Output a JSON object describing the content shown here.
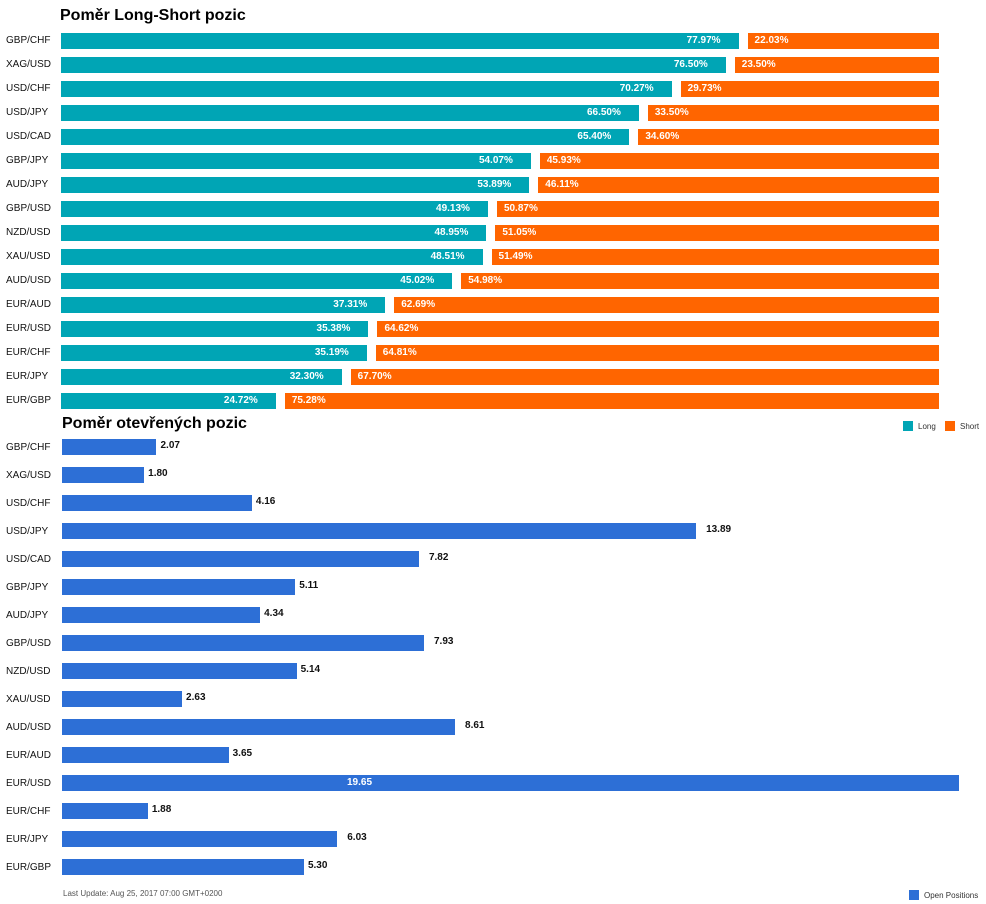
{
  "chart_data": [
    {
      "type": "bar",
      "orientation": "horizontal",
      "stacked": "100%",
      "title": "Poměr Long-Short pozic",
      "categories": [
        "GBP/CHF",
        "XAG/USD",
        "USD/CHF",
        "USD/JPY",
        "USD/CAD",
        "GBP/JPY",
        "AUD/JPY",
        "GBP/USD",
        "NZD/USD",
        "XAU/USD",
        "AUD/USD",
        "EUR/AUD",
        "EUR/USD",
        "EUR/CHF",
        "EUR/JPY",
        "EUR/GBP"
      ],
      "series": [
        {
          "name": "Long",
          "color": "#00a5b5",
          "values": [
            77.97,
            76.5,
            70.27,
            66.5,
            65.4,
            54.07,
            53.89,
            49.13,
            48.95,
            48.51,
            45.02,
            37.31,
            35.38,
            35.19,
            32.3,
            24.72
          ],
          "labels": [
            "77.97%",
            "76.50%",
            "70.27%",
            "66.50%",
            "65.40%",
            "54.07%",
            "53.89%",
            "49.13%",
            "48.95%",
            "48.51%",
            "45.02%",
            "37.31%",
            "35.38%",
            "35.19%",
            "32.30%",
            "24.72%"
          ]
        },
        {
          "name": "Short",
          "color": "#ff6500",
          "values": [
            22.03,
            23.5,
            29.73,
            33.5,
            34.6,
            45.93,
            46.11,
            50.87,
            51.05,
            51.49,
            54.98,
            62.69,
            64.62,
            64.81,
            67.7,
            75.28
          ],
          "labels": [
            "22.03%",
            "23.50%",
            "29.73%",
            "33.50%",
            "34.60%",
            "45.93%",
            "46.11%",
            "50.87%",
            "51.05%",
            "51.49%",
            "54.98%",
            "62.69%",
            "64.62%",
            "64.81%",
            "67.70%",
            "75.28%"
          ]
        }
      ],
      "xlim": [
        0,
        100
      ],
      "legend": "bottom-right"
    },
    {
      "type": "bar",
      "orientation": "horizontal",
      "title": "Poměr otevřených pozic",
      "categories": [
        "GBP/CHF",
        "XAG/USD",
        "USD/CHF",
        "USD/JPY",
        "USD/CAD",
        "GBP/JPY",
        "AUD/JPY",
        "GBP/USD",
        "NZD/USD",
        "XAU/USD",
        "AUD/USD",
        "EUR/AUD",
        "EUR/USD",
        "EUR/CHF",
        "EUR/JPY",
        "EUR/GBP"
      ],
      "series": [
        {
          "name": "Open Positions",
          "color": "#2d6fd6",
          "values": [
            2.07,
            1.8,
            4.16,
            13.89,
            7.82,
            5.11,
            4.34,
            7.93,
            5.14,
            2.63,
            8.61,
            3.65,
            19.65,
            1.88,
            6.03,
            5.3
          ],
          "labels": [
            "2.07",
            "1.80",
            "4.16",
            "13.89",
            "7.82",
            "5.11",
            "4.34",
            "7.93",
            "5.14",
            "2.63",
            "8.61",
            "3.65",
            "19.65",
            "1.88",
            "6.03",
            "5.30"
          ]
        }
      ],
      "xlim": [
        0,
        19.65
      ],
      "legend": "bottom-right"
    }
  ],
  "footer": "Last Update: Aug 25, 2017 07:00 GMT+0200"
}
